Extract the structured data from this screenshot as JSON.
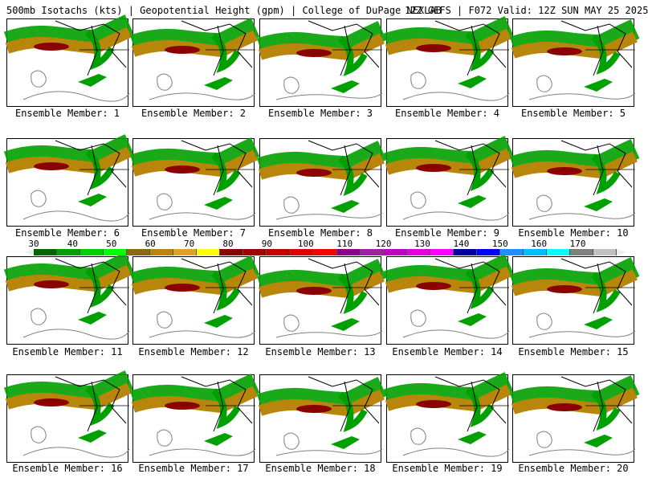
{
  "header": {
    "title": "500mb Isotachs (kts) | Geopotential Height (gpm) | College of DuPage NEXLAB",
    "run": "12Z GEFS | F072 Valid: 12Z SUN MAY 25 2025"
  },
  "members": [
    "Ensemble Member: 1",
    "Ensemble Member: 2",
    "Ensemble Member: 3",
    "Ensemble Member: 4",
    "Ensemble Member: 5",
    "Ensemble Member: 6",
    "Ensemble Member: 7",
    "Ensemble Member: 8",
    "Ensemble Member: 9",
    "Ensemble Member: 10",
    "Ensemble Member: 11",
    "Ensemble Member: 12",
    "Ensemble Member: 13",
    "Ensemble Member: 14",
    "Ensemble Member: 15",
    "Ensemble Member: 16",
    "Ensemble Member: 17",
    "Ensemble Member: 18",
    "Ensemble Member: 19",
    "Ensemble Member: 20"
  ],
  "colorbar": {
    "labels": [
      "30",
      "40",
      "50",
      "60",
      "70",
      "80",
      "90",
      "100",
      "110",
      "120",
      "130",
      "140",
      "150",
      "160",
      "170"
    ],
    "colors": [
      "#006400",
      "#00a000",
      "#00d000",
      "#00ff00",
      "#8b6914",
      "#b8860b",
      "#daa520",
      "#ffff00",
      "#8b0000",
      "#a00000",
      "#c00000",
      "#e00000",
      "#ff0000",
      "#8b008b",
      "#a020a0",
      "#c000c0",
      "#e000e0",
      "#ff00ff",
      "#0000a0",
      "#0000ff",
      "#1e90ff",
      "#00bfff",
      "#00ffff",
      "#808080",
      "#c0c0c0"
    ]
  },
  "map_colors": {
    "jet_core": "#8b0000",
    "jet_mid": "#b8860b",
    "jet_outer": "#00a000",
    "land": "#000000",
    "contour": "#808080"
  }
}
